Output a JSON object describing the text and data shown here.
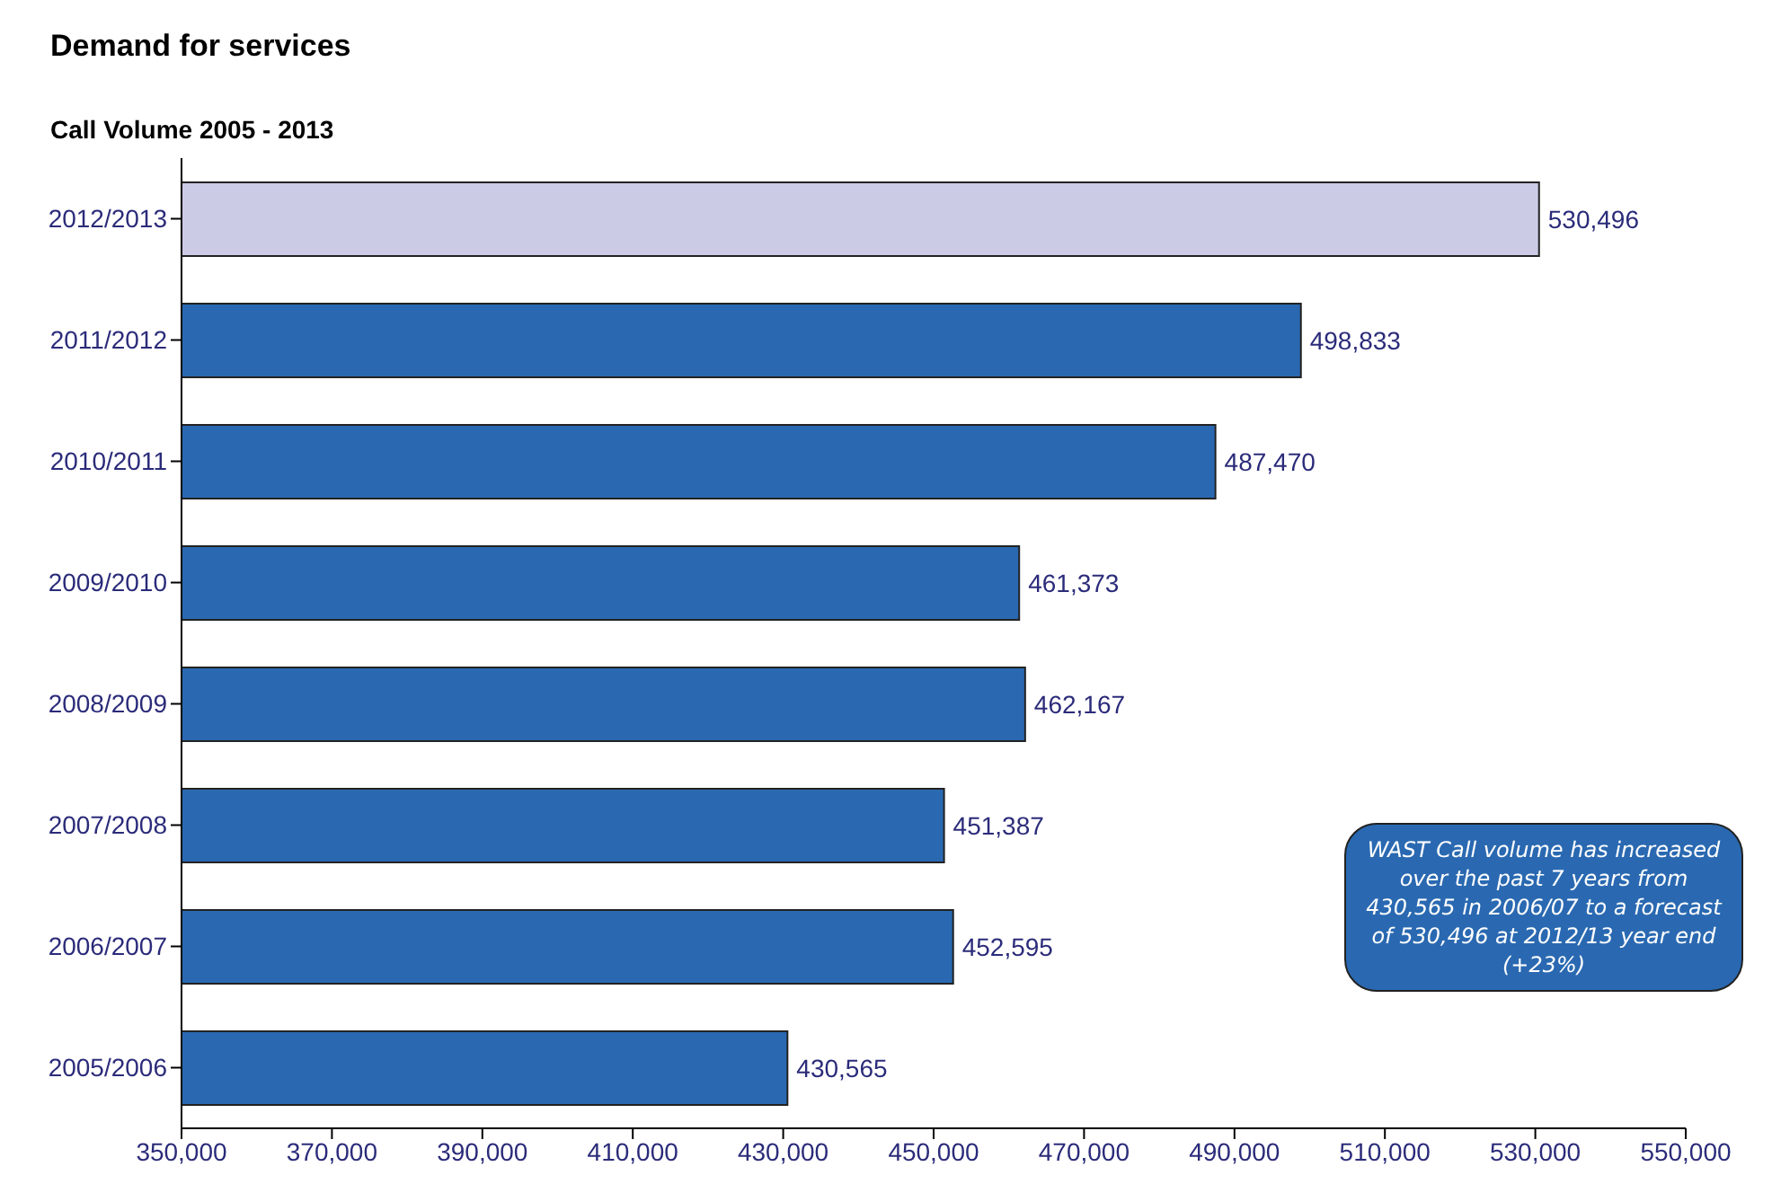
{
  "chart_data": {
    "type": "bar",
    "orientation": "horizontal",
    "title": "Demand for services",
    "subtitle": "Call Volume 2005 - 2013",
    "categories": [
      "2012/2013",
      "2011/2012",
      "2010/2011",
      "2009/2010",
      "2008/2009",
      "2007/2008",
      "2006/2007",
      "2005/2006"
    ],
    "values": [
      530496,
      498833,
      487470,
      461373,
      462167,
      451387,
      452595,
      430565
    ],
    "value_labels": [
      "530,496",
      "498,833",
      "487,470",
      "461,373",
      "462,167",
      "451,387",
      "452,595",
      "430,565"
    ],
    "colors": [
      "#cccbe6",
      "#2a69b1",
      "#2a69b1",
      "#2a69b1",
      "#2a69b1",
      "#2a69b1",
      "#2a69b1",
      "#2a69b1"
    ],
    "xlim": [
      350000,
      550000
    ],
    "xticks": [
      {
        "value": 350000,
        "label": "350,000"
      },
      {
        "value": 370000,
        "label": "370,000"
      },
      {
        "value": 390000,
        "label": "390,000"
      },
      {
        "value": 410000,
        "label": "410,000"
      },
      {
        "value": 430000,
        "label": "430,000"
      },
      {
        "value": 450000,
        "label": "450,000"
      },
      {
        "value": 470000,
        "label": "470,000"
      },
      {
        "value": 490000,
        "label": "490,000"
      },
      {
        "value": 510000,
        "label": "510,000"
      },
      {
        "value": 530000,
        "label": "530,000"
      },
      {
        "value": 550000,
        "label": "550,000"
      }
    ],
    "annotations": [
      "WAST Call volume has increased over the past 7 years from 430,565 in 2006/07 to a forecast of 530,496 at 2012/13 year end (+23%)"
    ]
  }
}
